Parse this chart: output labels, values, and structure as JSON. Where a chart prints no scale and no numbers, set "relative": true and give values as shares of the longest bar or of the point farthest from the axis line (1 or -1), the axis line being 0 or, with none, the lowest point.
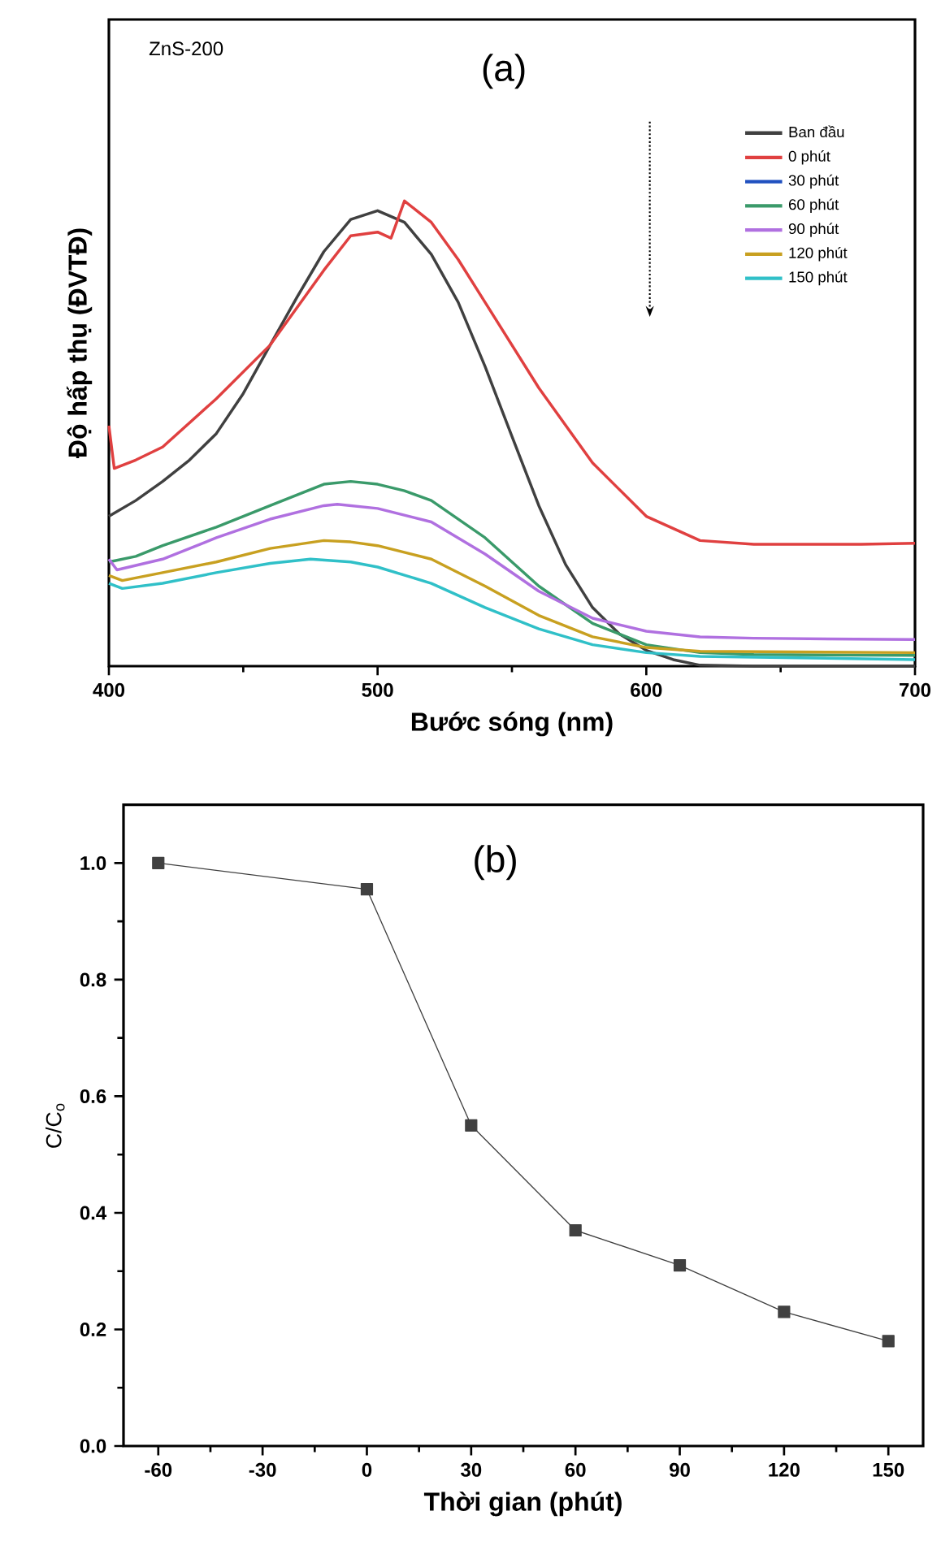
{
  "chart_data": [
    {
      "type": "line",
      "relative": true,
      "xlabel": "Bước sóng (nm)",
      "ylabel": "Độ hấp thụ (ĐVTĐ)",
      "xlim": [
        400,
        700
      ],
      "xticks": [
        400,
        500,
        600,
        700
      ],
      "legend": "top right",
      "annotations": [
        "ZnS-200",
        "(a)"
      ],
      "series": [
        {
          "name": "Ban đầu",
          "color": "#404040",
          "x": [
            400,
            410,
            420,
            430,
            440,
            450,
            460,
            470,
            480,
            490,
            500,
            510,
            520,
            530,
            540,
            550,
            560,
            570,
            580,
            590,
            600,
            610,
            620,
            640,
            700
          ],
          "values": [
            0.322,
            0.356,
            0.397,
            0.443,
            0.5,
            0.586,
            0.69,
            0.793,
            0.891,
            0.96,
            0.979,
            0.954,
            0.885,
            0.782,
            0.644,
            0.494,
            0.345,
            0.218,
            0.126,
            0.069,
            0.034,
            0.014,
            0.002,
            0,
            0
          ]
        },
        {
          "name": "0 phút",
          "color": "#e04040",
          "x": [
            400,
            402,
            410,
            420,
            440,
            460,
            480,
            490,
            500,
            505,
            510,
            520,
            530,
            540,
            560,
            580,
            600,
            620,
            640,
            660,
            680,
            700
          ],
          "values": [
            0.517,
            0.425,
            0.443,
            0.471,
            0.575,
            0.69,
            0.851,
            0.925,
            0.933,
            0.92,
            1,
            0.954,
            0.874,
            0.782,
            0.598,
            0.437,
            0.322,
            0.27,
            0.262,
            0.262,
            0.262,
            0.264
          ]
        },
        {
          "name": "30 phút",
          "color": "#2050c0"
        },
        {
          "name": "60 phút",
          "color": "#3a9a6a",
          "x": [
            400,
            410,
            420,
            440,
            460,
            480,
            490,
            500,
            510,
            520,
            540,
            560,
            580,
            600,
            620,
            640,
            700
          ],
          "values": [
            0.224,
            0.236,
            0.259,
            0.299,
            0.345,
            0.391,
            0.397,
            0.391,
            0.377,
            0.356,
            0.276,
            0.172,
            0.092,
            0.046,
            0.029,
            0.025,
            0.023
          ]
        },
        {
          "name": "90 phút",
          "color": "#b070e0",
          "x": [
            400,
            403,
            420,
            440,
            460,
            480,
            485,
            500,
            520,
            540,
            560,
            580,
            600,
            620,
            640,
            700
          ],
          "values": [
            0.23,
            0.207,
            0.23,
            0.276,
            0.316,
            0.345,
            0.348,
            0.339,
            0.31,
            0.241,
            0.161,
            0.103,
            0.075,
            0.063,
            0.06,
            0.057
          ]
        },
        {
          "name": "120 phút",
          "color": "#c8a020",
          "x": [
            400,
            405,
            420,
            440,
            460,
            480,
            490,
            500,
            520,
            540,
            560,
            580,
            600,
            620,
            700
          ],
          "values": [
            0.195,
            0.184,
            0.201,
            0.224,
            0.253,
            0.27,
            0.267,
            0.259,
            0.23,
            0.172,
            0.109,
            0.063,
            0.04,
            0.032,
            0.029
          ]
        },
        {
          "name": "150 phút",
          "color": "#30c0c8",
          "x": [
            400,
            405,
            420,
            440,
            460,
            475,
            490,
            500,
            520,
            540,
            560,
            580,
            600,
            620,
            700
          ],
          "values": [
            0.178,
            0.167,
            0.178,
            0.201,
            0.221,
            0.23,
            0.224,
            0.213,
            0.178,
            0.126,
            0.08,
            0.046,
            0.029,
            0.021,
            0.014
          ]
        }
      ]
    },
    {
      "type": "line",
      "xlabel": "Thời gian (phút)",
      "ylabel": "C/C$_{o}$",
      "xlim": [
        -70,
        160
      ],
      "xticks": [
        -60,
        -30,
        0,
        30,
        60,
        90,
        120,
        150
      ],
      "ylim": [
        0,
        1.1
      ],
      "yticks": [
        {
          "value": 0,
          "label": "0.0"
        },
        0.2,
        0.4,
        0.6,
        0.8,
        {
          "value": 1,
          "label": "1.0"
        }
      ],
      "marker": "square",
      "annotations": [
        "(b)"
      ],
      "series": [
        {
          "color": "#404040",
          "x": [
            -60,
            0,
            30,
            60,
            90,
            120,
            150
          ],
          "values": [
            1.0,
            0.955,
            0.55,
            0.37,
            0.31,
            0.23,
            0.18
          ]
        }
      ]
    }
  ]
}
